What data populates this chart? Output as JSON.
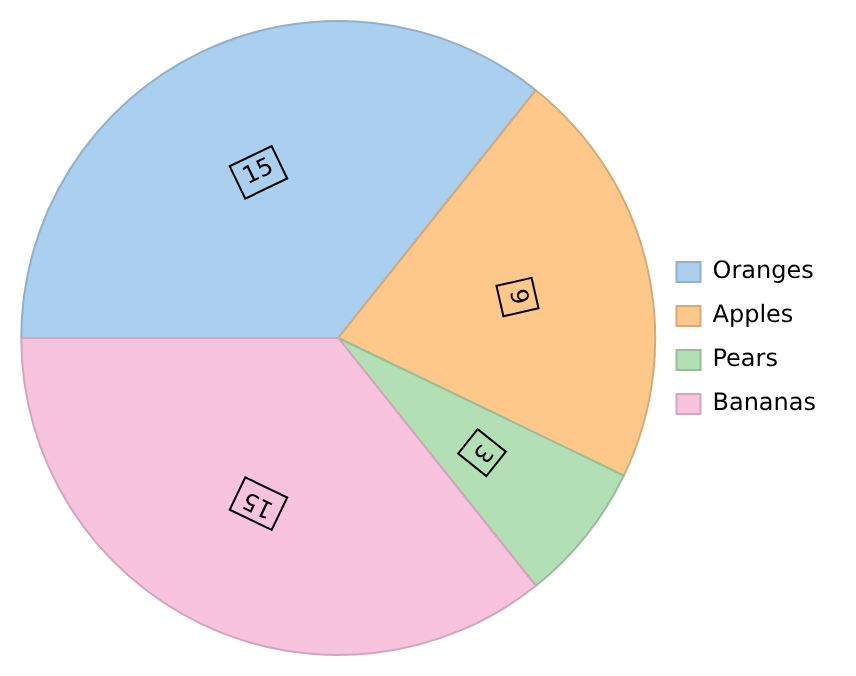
{
  "chart_data": {
    "type": "pie",
    "categories": [
      "Oranges",
      "Apples",
      "Pears",
      "Bananas"
    ],
    "values": [
      15,
      9,
      3,
      15
    ],
    "colors": [
      "#abcfee",
      "#fdc88a",
      "#b3dfb4",
      "#f8c3dd"
    ],
    "data_labels": true,
    "legend": "right"
  }
}
